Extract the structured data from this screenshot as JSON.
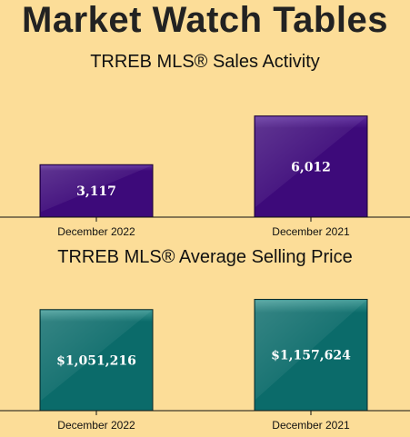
{
  "header": {
    "title": "Market Watch Tables"
  },
  "chart_data": [
    {
      "type": "bar",
      "title": "TRREB MLS® Sales Activity",
      "categories": [
        "December 2022",
        "December 2021"
      ],
      "values": [
        3117,
        6012
      ],
      "value_labels": [
        "3,117",
        "6,012"
      ],
      "ylim": [
        0,
        6750
      ],
      "grid": false,
      "colors": {
        "bar": "#3d0a7a",
        "bar_top": "#5b2a9c",
        "border": "#1a0033"
      }
    },
    {
      "type": "bar",
      "title": "TRREB MLS® Average Selling Price",
      "categories": [
        "December 2022",
        "December 2021"
      ],
      "values": [
        1051216,
        1157624
      ],
      "value_labels": [
        "$1,051,216",
        "$1,157,624"
      ],
      "ylim": [
        0,
        1200000
      ],
      "grid": false,
      "colors": {
        "bar": "#0b6b6a",
        "bar_top": "#3f9a96",
        "border": "#0b2a2a"
      }
    }
  ]
}
